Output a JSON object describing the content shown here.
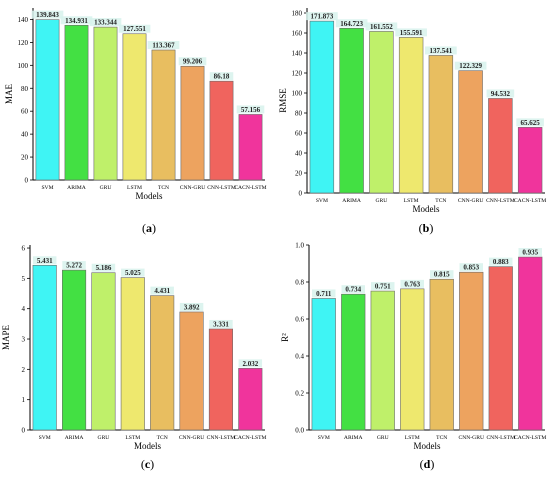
{
  "colors": {
    "SVM": "#3ff4f4",
    "ARIMA": "#43e043",
    "GRU": "#bff06a",
    "LSTM": "#eee86e",
    "TCN": "#e8be60",
    "CNN-GRU": "#eda35f",
    "CNN-LSTM": "#f0645e",
    "CACN-LSTM": "#f0349c",
    "value_label_highlight": "#d7f2ec",
    "bar_outline": "#6a6a6a"
  },
  "chart_data": [
    {
      "panel": "(a)",
      "type": "bar",
      "categories": [
        "SVM",
        "ARIMA",
        "GRU",
        "LSTM",
        "TCN",
        "CNN-GRU",
        "CNN-LSTM",
        "CACN-LSTM"
      ],
      "values": [
        139.843,
        134.931,
        133.344,
        127.551,
        113.367,
        99.206,
        86.18,
        57.156
      ],
      "value_labels": [
        "139.843",
        "134.931",
        "133.344",
        "127.551",
        "113.367",
        "99.206",
        "86.18",
        "57.156"
      ],
      "xlabel": "Models",
      "ylabel": "MAE",
      "ylim": [
        0,
        150
      ],
      "yticks": [
        0,
        20,
        40,
        60,
        80,
        100,
        120,
        140
      ],
      "ytick_labels": [
        "0",
        "20",
        "40",
        "60",
        "80",
        "100",
        "120",
        "140"
      ]
    },
    {
      "panel": "(b)",
      "type": "bar",
      "categories": [
        "SVM",
        "ARIMA",
        "GRU",
        "LSTM",
        "TCN",
        "CNN-GRU",
        "CNN-LSTM",
        "CACN-LSTM"
      ],
      "values": [
        171.873,
        164.723,
        161.552,
        155.591,
        137.541,
        122.329,
        94.532,
        65.625
      ],
      "value_labels": [
        "171.873",
        "164.723",
        "161.552",
        "155.591",
        "137.541",
        "122.329",
        "94.532",
        "65.625"
      ],
      "xlabel": "Models",
      "ylabel": "RMSE",
      "ylim": [
        0,
        185
      ],
      "yticks": [
        0,
        20,
        40,
        60,
        80,
        100,
        120,
        140,
        160,
        180
      ],
      "ytick_labels": [
        "0",
        "20",
        "40",
        "60",
        "80",
        "100",
        "120",
        "140",
        "160",
        "180"
      ]
    },
    {
      "panel": "(c)",
      "type": "bar",
      "categories": [
        "SVM",
        "ARIMA",
        "GRU",
        "LSTM",
        "TCN",
        "CNN-GRU",
        "CNN-LSTM",
        "CACN-LSTM"
      ],
      "values": [
        5.431,
        5.272,
        5.186,
        5.025,
        4.431,
        3.892,
        3.331,
        2.032
      ],
      "value_labels": [
        "5.431",
        "5.272",
        "5.186",
        "5.025",
        "4.431",
        "3.892",
        "3.331",
        "2.032"
      ],
      "xlabel": "Models",
      "ylabel": "MAPE",
      "ylim": [
        0,
        6.1
      ],
      "yticks": [
        0,
        1,
        2,
        3,
        4,
        5,
        6
      ],
      "ytick_labels": [
        "0",
        "1",
        "2",
        "3",
        "4",
        "5",
        "6"
      ]
    },
    {
      "panel": "(d)",
      "type": "bar",
      "categories": [
        "SVM",
        "ARIMA",
        "GRU",
        "LSTM",
        "TCN",
        "CNN-GRU",
        "CNN-LSTM",
        "CACN-LSTM"
      ],
      "values": [
        0.711,
        0.734,
        0.751,
        0.763,
        0.815,
        0.853,
        0.883,
        0.935
      ],
      "value_labels": [
        "0.711",
        "0.734",
        "0.751",
        "0.763",
        "0.815",
        "0.853",
        "0.883",
        "0.935"
      ],
      "xlabel": "Models",
      "ylabel": "R²",
      "ylim": [
        0,
        1.0
      ],
      "yticks": [
        0,
        0.2,
        0.4,
        0.6,
        0.8,
        1.0
      ],
      "ytick_labels": [
        "0.0",
        "0.2",
        "0.4",
        "0.6",
        "0.8",
        "1.0"
      ]
    }
  ]
}
